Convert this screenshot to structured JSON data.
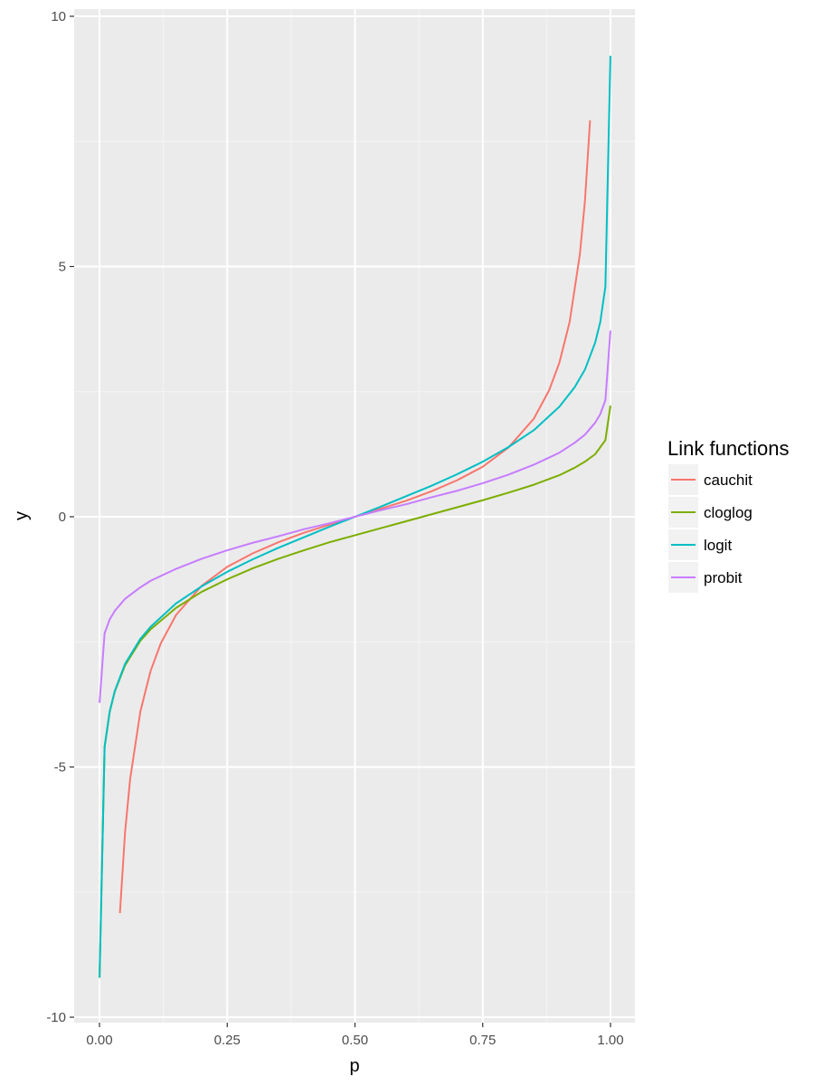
{
  "chart_data": {
    "type": "line",
    "xlabel": "p",
    "ylabel": "y",
    "xlim": [
      0,
      1
    ],
    "ylim": [
      -10,
      10
    ],
    "x_ticks": [
      "0.00",
      "0.25",
      "0.50",
      "0.75",
      "1.00"
    ],
    "y_ticks": [
      "-10",
      "-5",
      "0",
      "5",
      "10"
    ],
    "grid": true,
    "legend": {
      "title": "Link functions",
      "position": "right"
    },
    "series": [
      {
        "name": "cauchit",
        "color": "#F8766D",
        "points": [
          [
            0.04,
            -7.92
          ],
          [
            0.05,
            -6.31
          ],
          [
            0.06,
            -5.24
          ],
          [
            0.08,
            -3.89
          ],
          [
            0.1,
            -3.08
          ],
          [
            0.12,
            -2.53
          ],
          [
            0.15,
            -1.96
          ],
          [
            0.2,
            -1.38
          ],
          [
            0.25,
            -1.0
          ],
          [
            0.3,
            -0.73
          ],
          [
            0.35,
            -0.51
          ],
          [
            0.4,
            -0.32
          ],
          [
            0.45,
            -0.16
          ],
          [
            0.5,
            0.0
          ],
          [
            0.55,
            0.16
          ],
          [
            0.6,
            0.32
          ],
          [
            0.65,
            0.51
          ],
          [
            0.7,
            0.73
          ],
          [
            0.75,
            1.0
          ],
          [
            0.8,
            1.38
          ],
          [
            0.85,
            1.96
          ],
          [
            0.88,
            2.53
          ],
          [
            0.9,
            3.08
          ],
          [
            0.92,
            3.89
          ],
          [
            0.94,
            5.24
          ],
          [
            0.95,
            6.31
          ],
          [
            0.96,
            7.92
          ]
        ]
      },
      {
        "name": "cloglog",
        "color": "#7CAE00",
        "points": [
          [
            0.0001,
            -9.21
          ],
          [
            0.01,
            -4.6
          ],
          [
            0.02,
            -3.9
          ],
          [
            0.03,
            -3.49
          ],
          [
            0.05,
            -2.97
          ],
          [
            0.08,
            -2.48
          ],
          [
            0.1,
            -2.25
          ],
          [
            0.15,
            -1.82
          ],
          [
            0.2,
            -1.5
          ],
          [
            0.25,
            -1.25
          ],
          [
            0.3,
            -1.03
          ],
          [
            0.35,
            -0.84
          ],
          [
            0.4,
            -0.67
          ],
          [
            0.45,
            -0.51
          ],
          [
            0.5,
            -0.37
          ],
          [
            0.55,
            -0.23
          ],
          [
            0.6,
            -0.09
          ],
          [
            0.65,
            0.05
          ],
          [
            0.7,
            0.19
          ],
          [
            0.75,
            0.33
          ],
          [
            0.8,
            0.48
          ],
          [
            0.85,
            0.64
          ],
          [
            0.9,
            0.83
          ],
          [
            0.93,
            0.98
          ],
          [
            0.95,
            1.1
          ],
          [
            0.97,
            1.25
          ],
          [
            0.99,
            1.53
          ],
          [
            0.9999,
            2.22
          ]
        ]
      },
      {
        "name": "logit",
        "color": "#00BFC4",
        "points": [
          [
            0.0001,
            -9.21
          ],
          [
            0.01,
            -4.6
          ],
          [
            0.02,
            -3.89
          ],
          [
            0.03,
            -3.48
          ],
          [
            0.05,
            -2.94
          ],
          [
            0.08,
            -2.44
          ],
          [
            0.1,
            -2.2
          ],
          [
            0.15,
            -1.73
          ],
          [
            0.2,
            -1.39
          ],
          [
            0.25,
            -1.1
          ],
          [
            0.3,
            -0.85
          ],
          [
            0.35,
            -0.62
          ],
          [
            0.4,
            -0.41
          ],
          [
            0.45,
            -0.2
          ],
          [
            0.5,
            0.0
          ],
          [
            0.55,
            0.2
          ],
          [
            0.6,
            0.41
          ],
          [
            0.65,
            0.62
          ],
          [
            0.7,
            0.85
          ],
          [
            0.75,
            1.1
          ],
          [
            0.8,
            1.39
          ],
          [
            0.85,
            1.73
          ],
          [
            0.9,
            2.2
          ],
          [
            0.93,
            2.59
          ],
          [
            0.95,
            2.94
          ],
          [
            0.97,
            3.48
          ],
          [
            0.98,
            3.89
          ],
          [
            0.99,
            4.6
          ],
          [
            0.9999,
            9.21
          ]
        ]
      },
      {
        "name": "probit",
        "color": "#C77CFF",
        "points": [
          [
            0.0001,
            -3.72
          ],
          [
            0.01,
            -2.33
          ],
          [
            0.02,
            -2.05
          ],
          [
            0.03,
            -1.88
          ],
          [
            0.05,
            -1.64
          ],
          [
            0.08,
            -1.41
          ],
          [
            0.1,
            -1.28
          ],
          [
            0.15,
            -1.04
          ],
          [
            0.2,
            -0.84
          ],
          [
            0.25,
            -0.67
          ],
          [
            0.3,
            -0.52
          ],
          [
            0.35,
            -0.39
          ],
          [
            0.4,
            -0.25
          ],
          [
            0.45,
            -0.13
          ],
          [
            0.5,
            0.0
          ],
          [
            0.55,
            0.13
          ],
          [
            0.6,
            0.25
          ],
          [
            0.65,
            0.39
          ],
          [
            0.7,
            0.52
          ],
          [
            0.75,
            0.67
          ],
          [
            0.8,
            0.84
          ],
          [
            0.85,
            1.04
          ],
          [
            0.9,
            1.28
          ],
          [
            0.93,
            1.48
          ],
          [
            0.95,
            1.64
          ],
          [
            0.97,
            1.88
          ],
          [
            0.98,
            2.05
          ],
          [
            0.99,
            2.33
          ],
          [
            0.9999,
            3.72
          ]
        ]
      }
    ]
  }
}
